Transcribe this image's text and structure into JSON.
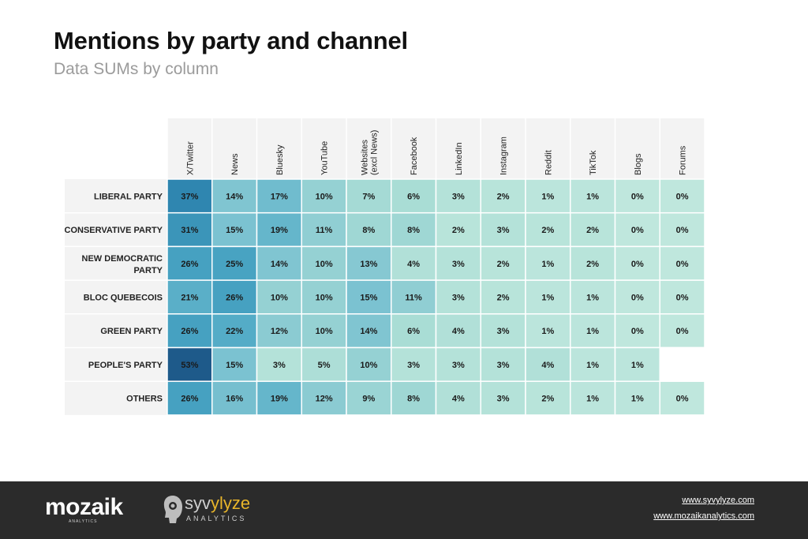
{
  "header": {
    "title": "Mentions by party and channel",
    "subtitle": "Data SUMs by column"
  },
  "chart_data": {
    "type": "heatmap",
    "columns": [
      "X/Twitter",
      "News",
      "Bluesky",
      "YouTube",
      "Websites (excl News)",
      "Facebook",
      "LinkedIn",
      "Instagram",
      "Reddit",
      "TikTok",
      "Blogs",
      "Forums"
    ],
    "rows": [
      "LIBERAL PARTY",
      "CONSERVATIVE PARTY",
      "NEW DEMOCRATIC PARTY",
      "BLOC QUEBECOIS",
      "GREEN PARTY",
      "PEOPLE'S PARTY",
      "OTHERS"
    ],
    "values": [
      [
        37,
        14,
        17,
        10,
        7,
        6,
        3,
        2,
        1,
        1,
        0,
        0
      ],
      [
        31,
        15,
        19,
        11,
        8,
        8,
        2,
        3,
        2,
        2,
        0,
        0
      ],
      [
        26,
        25,
        14,
        10,
        13,
        4,
        3,
        2,
        1,
        2,
        0,
        0
      ],
      [
        21,
        26,
        10,
        10,
        15,
        11,
        3,
        2,
        1,
        1,
        0,
        0
      ],
      [
        26,
        22,
        12,
        10,
        14,
        6,
        4,
        3,
        1,
        1,
        0,
        0
      ],
      [
        53,
        15,
        3,
        5,
        10,
        3,
        3,
        3,
        4,
        1,
        1,
        null
      ],
      [
        26,
        16,
        19,
        12,
        9,
        8,
        4,
        3,
        2,
        1,
        1,
        0
      ]
    ],
    "value_suffix": "%",
    "color_low": "#bfe7dd",
    "color_high": "#1e5a8a",
    "title": "Mentions by party and channel",
    "subtitle": "Data SUMs by column"
  },
  "footer": {
    "mozaik_logo": "mozaik",
    "mozaik_tagline": "ANALYTICS",
    "syvylyze_logo_a": "syv",
    "syvylyze_logo_b": "ylyze",
    "syvylyze_tagline": "ANALYTICS",
    "link_syvylyze": "www.syvylyze.com",
    "link_mozaik": "www.mozaikanalytics.com"
  }
}
